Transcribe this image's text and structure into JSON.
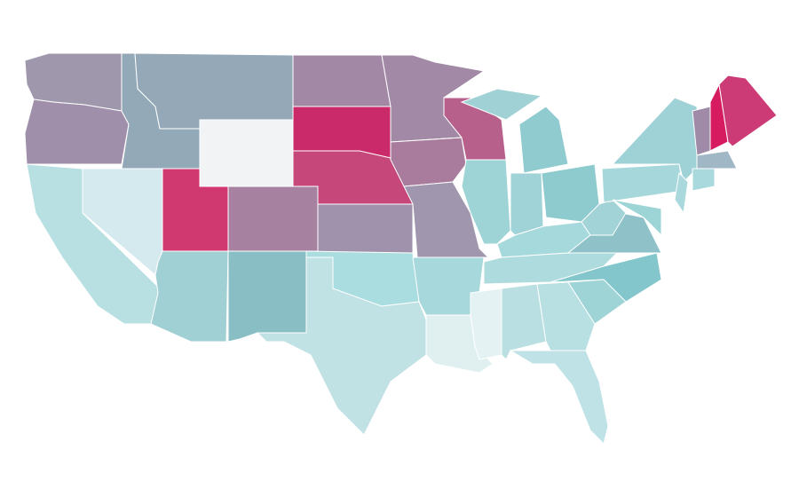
{
  "map": {
    "background": "#ffffff",
    "border_color": "#ffffff",
    "region_colors": [
      "#9f98ad",
      "#a08fab",
      "#b8e0e2",
      "#d4eaee",
      "#93a9b8",
      "#94a8b7",
      "#f2f3f5",
      "#d0396f",
      "#a0cfd4",
      "#a781a0",
      "#89bec4",
      "#a288a4",
      "#cb2a6a",
      "#c6477a",
      "#a092ac",
      "#a9dde0",
      "#c0e2e5",
      "#a28aa7",
      "#a97b9d",
      "#a096ad",
      "#a7d8dc",
      "#e0f0f1",
      "#b8608c",
      "#9fd4d7",
      "#e4f2f3",
      "#8fcbcf",
      "#a0d2d5",
      "#9fd3d7",
      "#8ecbcf",
      "#a6d9dc",
      "#aedbdd",
      "#b9dfe2",
      "#b8dfe2",
      "#bee2e5",
      "#83c6cb",
      "#8fc1c8",
      "#9fd4d7",
      "#a1d3d7",
      "#a6d7da",
      "#9fd2d6",
      "#9dd4d6",
      "#a9d9dc",
      "#9f8aa8",
      "#d61b60",
      "#cc3b75",
      "#a0b7c5",
      "#a9d9dc"
    ]
  }
}
